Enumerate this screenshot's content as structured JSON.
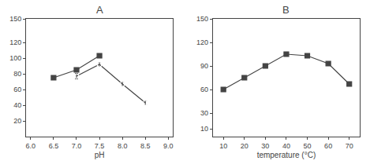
{
  "chart_data": [
    {
      "type": "line",
      "title": "A",
      "x_label": "pH",
      "xlim": [
        5.9,
        9.1
      ],
      "xticks": [
        {
          "value": 6.0,
          "label": "6.0"
        },
        6.5,
        {
          "value": 7.0,
          "label": "7.0"
        },
        7.5,
        {
          "value": 8.0,
          "label": "8.0"
        },
        8.5,
        {
          "value": 9.0,
          "label": "9.0"
        }
      ],
      "ylim": [
        0,
        150
      ],
      "yticks": [
        20,
        40,
        60,
        80,
        100,
        120,
        150
      ],
      "grid": false,
      "series": [
        {
          "color": "#444444",
          "marker": "square",
          "x": [
            6.5,
            7.0,
            7.5
          ],
          "values": [
            75,
            85,
            103
          ],
          "errors": [
            2.5,
            2.5,
            2.5
          ]
        },
        {
          "color": "#444444",
          "marker": "circle-open",
          "x": [
            7.0,
            7.5,
            8.0,
            8.5
          ],
          "values": [
            77,
            92,
            67,
            43
          ],
          "errors": [
            3.5,
            2.5,
            2.5,
            2.5
          ]
        }
      ]
    },
    {
      "type": "line",
      "title": "B",
      "x_label": "temperature (°C)",
      "xlim": [
        5,
        75
      ],
      "xticks": [
        10,
        20,
        30,
        40,
        50,
        60,
        70
      ],
      "ylim": [
        0,
        150
      ],
      "yticks": [
        10,
        30,
        60,
        90,
        120,
        150
      ],
      "grid": false,
      "series": [
        {
          "color": "#444444",
          "marker": "square",
          "x": [
            10,
            20,
            30,
            40,
            50,
            60,
            70
          ],
          "values": [
            60,
            75,
            90,
            105,
            103,
            93,
            67
          ],
          "errors": [
            2,
            2,
            2,
            2,
            2,
            2,
            2
          ]
        }
      ]
    }
  ]
}
